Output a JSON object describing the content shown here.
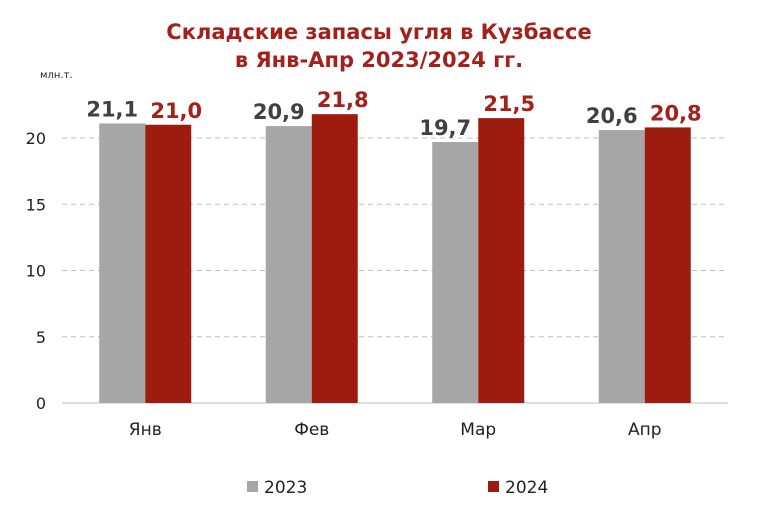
{
  "chart_data": {
    "type": "bar",
    "title_line1": "Складские запасы угля в Кузбассе",
    "title_line2": "в Янв-Апр 2023/2024 гг.",
    "unit_label": "млн.т.",
    "categories": [
      "Янв",
      "Фев",
      "Мар",
      "Апр"
    ],
    "series": [
      {
        "name": "2023",
        "values": [
          21.1,
          20.9,
          19.7,
          20.6
        ],
        "labels": [
          "21,1",
          "20,9",
          "19,7",
          "20,6"
        ],
        "color": "#a6a6a6",
        "label_color": "#404040"
      },
      {
        "name": "2024",
        "values": [
          21.0,
          21.8,
          21.5,
          20.8
        ],
        "labels": [
          "21,0",
          "21,8",
          "21,5",
          "20,8"
        ],
        "color": "#9e1b0f",
        "label_color": "#a3201b"
      }
    ],
    "y_ticks": [
      0,
      5,
      10,
      15,
      20
    ],
    "ylim": [
      0,
      25
    ],
    "grid": true,
    "legend_position": "bottom"
  }
}
